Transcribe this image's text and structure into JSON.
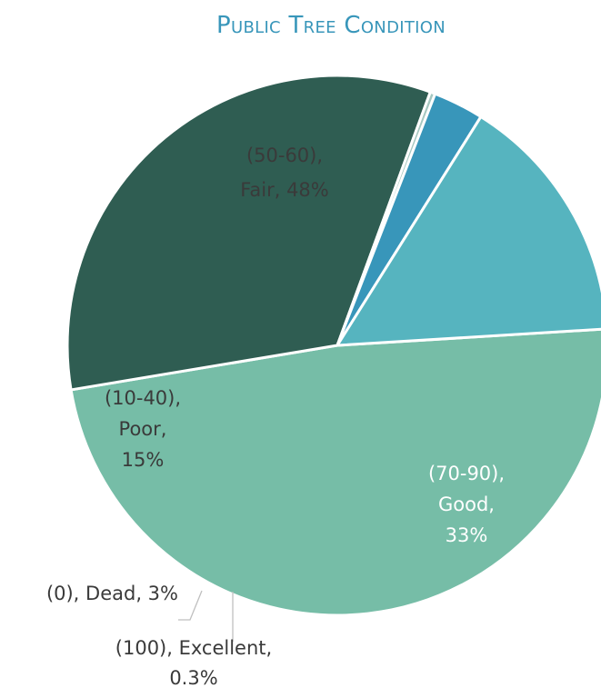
{
  "chart_data": {
    "type": "pie",
    "title": "Public Tree Condition",
    "slices": [
      {
        "label_lines": [
          "(50-60),",
          "Fair, 48%"
        ],
        "range": "(50-60)",
        "category": "Fair",
        "value": 48,
        "value_label": "48%",
        "color": "#76BDA7",
        "label_color": "#3a3a3a",
        "label_position": "inside"
      },
      {
        "label_lines": [
          "(70-90),",
          "Good,",
          "33%"
        ],
        "range": "(70-90)",
        "category": "Good",
        "value": 33,
        "value_label": "33%",
        "color": "#2F5D52",
        "label_color": "#ffffff",
        "label_position": "inside"
      },
      {
        "label_lines": [
          "(100), Excellent,",
          "0.3%"
        ],
        "range": "(100)",
        "category": "Excellent",
        "value": 0.3,
        "value_label": "0.3%",
        "color": "#A5C7C0",
        "label_color": "#3a3a3a",
        "label_position": "outside"
      },
      {
        "label_lines": [
          "(0), Dead, 3%"
        ],
        "range": "(0)",
        "category": "Dead",
        "value": 3,
        "value_label": "3%",
        "color": "#3896BA",
        "label_color": "#3a3a3a",
        "label_position": "outside"
      },
      {
        "label_lines": [
          "(10-40),",
          "Poor,",
          "15%"
        ],
        "range": "(10-40)",
        "category": "Poor",
        "value": 15,
        "value_label": "15%",
        "color": "#56B4BF",
        "label_color": "#3a3a3a",
        "label_position": "inside"
      }
    ],
    "title_color": "#3896BA",
    "legend": "none"
  }
}
